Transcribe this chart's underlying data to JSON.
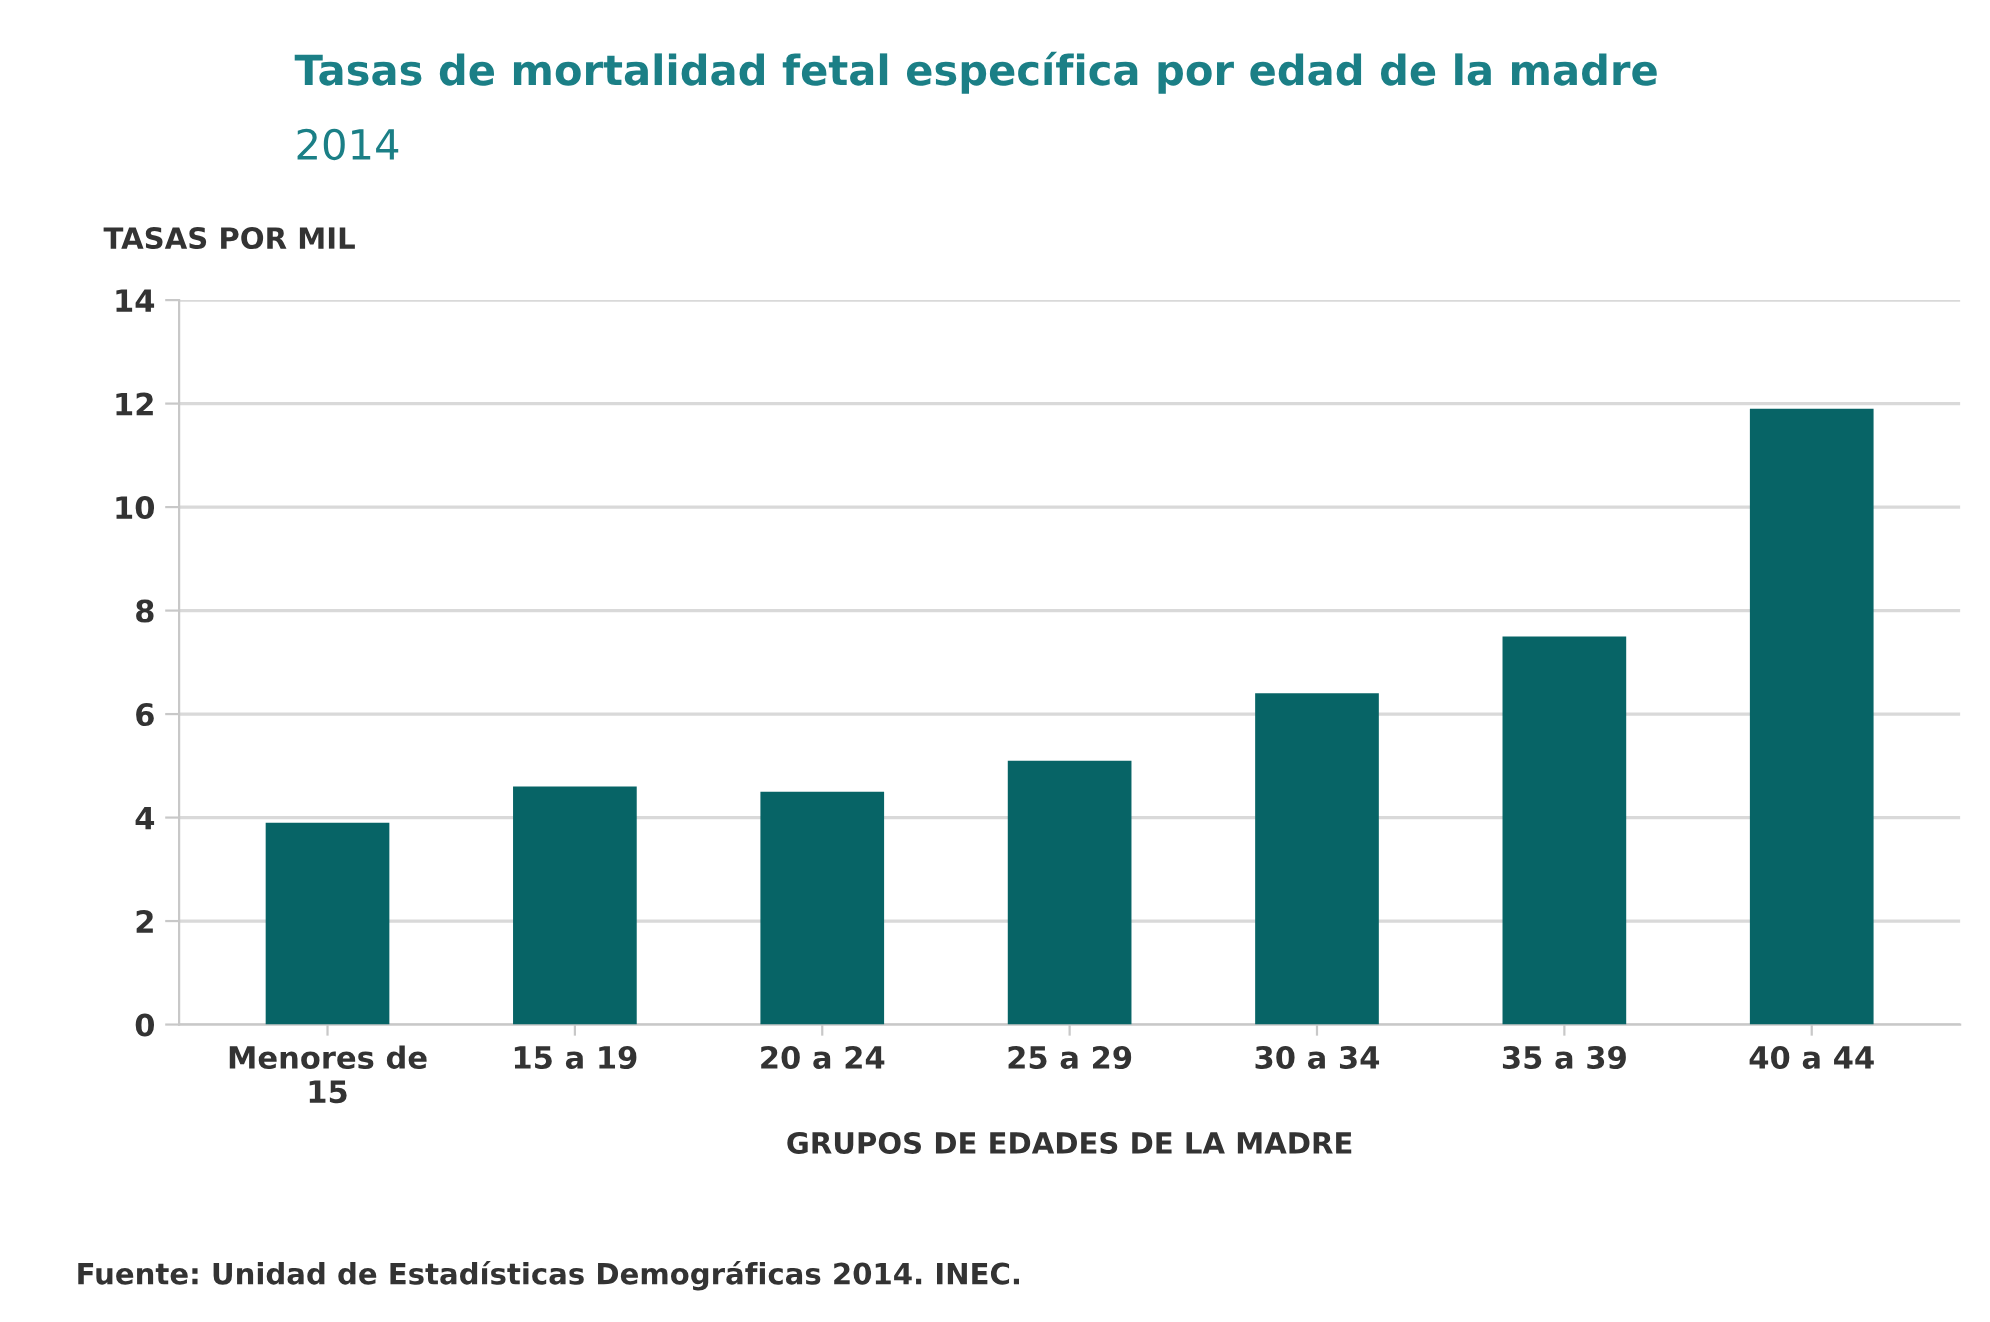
{
  "chart_data": {
    "type": "bar",
    "title": "Tasas de mortalidad fetal específica por edad de la madre",
    "subtitle": "2014",
    "ylabel": "TASAS POR MIL",
    "xlabel": "GRUPOS DE EDADES DE LA MADRE",
    "categories": [
      "Menores de\n15",
      "15 a 19",
      "20 a 24",
      "25 a 29",
      "30 a 34",
      "35 a 39",
      "40 a 44"
    ],
    "values": [
      3.9,
      4.6,
      4.5,
      5.1,
      6.4,
      7.5,
      11.9
    ],
    "color": "#076466",
    "ylim": [
      0,
      14
    ],
    "yticks": [
      0,
      2,
      4,
      6,
      8,
      10,
      12,
      14
    ],
    "grid": "y",
    "legend": false,
    "annotations": [
      "Fuente: Unidad de Estadísticas Demográficas 2014. INEC."
    ]
  }
}
